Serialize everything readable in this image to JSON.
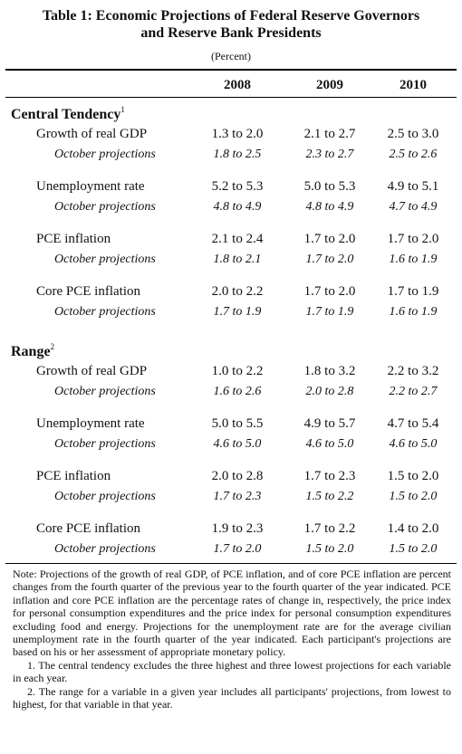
{
  "table": {
    "title_line1": "Table 1:  Economic Projections of Federal Reserve Governors",
    "title_line2": "and Reserve Bank Presidents",
    "unit": "(Percent)",
    "columns": [
      "2008",
      "2009",
      "2010"
    ],
    "sections": [
      {
        "label": "Central Tendency",
        "footnote": "1",
        "rows": [
          {
            "label": "Growth of real GDP",
            "values": [
              "1.3 to 2.0",
              "2.1 to 2.7",
              "2.5 to 3.0"
            ],
            "sub_label": "October projections",
            "sub_values": [
              "1.8 to 2.5",
              "2.3 to 2.7",
              "2.5 to 2.6"
            ]
          },
          {
            "label": "Unemployment rate",
            "values": [
              "5.2 to 5.3",
              "5.0 to 5.3",
              "4.9 to 5.1"
            ],
            "sub_label": "October projections",
            "sub_values": [
              "4.8 to 4.9",
              "4.8 to 4.9",
              "4.7 to 4.9"
            ]
          },
          {
            "label": "PCE inflation",
            "values": [
              "2.1 to 2.4",
              "1.7 to 2.0",
              "1.7 to 2.0"
            ],
            "sub_label": "October projections",
            "sub_values": [
              "1.8 to 2.1",
              "1.7 to 2.0",
              "1.6 to 1.9"
            ]
          },
          {
            "label": "Core PCE inflation",
            "values": [
              "2.0 to 2.2",
              "1.7 to 2.0",
              "1.7 to 1.9"
            ],
            "sub_label": "October projections",
            "sub_values": [
              "1.7 to 1.9",
              "1.7 to 1.9",
              "1.6 to 1.9"
            ]
          }
        ]
      },
      {
        "label": "Range",
        "footnote": "2",
        "rows": [
          {
            "label": "Growth of real GDP",
            "values": [
              "1.0 to 2.2",
              "1.8 to 3.2",
              "2.2 to 3.2"
            ],
            "sub_label": "October projections",
            "sub_values": [
              "1.6 to 2.6",
              "2.0 to 2.8",
              "2.2 to 2.7"
            ]
          },
          {
            "label": "Unemployment rate",
            "values": [
              "5.0 to 5.5",
              "4.9 to 5.7",
              "4.7 to 5.4"
            ],
            "sub_label": "October projections",
            "sub_values": [
              "4.6 to 5.0",
              "4.6 to 5.0",
              "4.6 to 5.0"
            ]
          },
          {
            "label": "PCE inflation",
            "values": [
              "2.0 to 2.8",
              "1.7 to 2.3",
              "1.5 to 2.0"
            ],
            "sub_label": "October projections",
            "sub_values": [
              "1.7 to 2.3",
              "1.5 to 2.2",
              "1.5 to 2.0"
            ]
          },
          {
            "label": "Core PCE inflation",
            "values": [
              "1.9 to 2.3",
              "1.7 to 2.2",
              "1.4 to 2.0"
            ],
            "sub_label": "October projections",
            "sub_values": [
              "1.7 to 2.0",
              "1.5 to 2.0",
              "1.5 to 2.0"
            ]
          }
        ]
      }
    ]
  },
  "notes": {
    "main": "Note:  Projections of the growth of real GDP, of PCE inflation, and of core PCE inflation are percent changes from the fourth quarter of the previous year to the fourth quarter of the year indicated. PCE inflation and core PCE inflation are the percentage rates of change in, respectively, the price index for personal consumption expenditures and the price index for personal consumption expenditures excluding food and energy. Projections for the unemployment rate are for the average civilian unemployment rate in the fourth quarter of the year indicated. Each participant's projections are based on his or her assessment of appropriate monetary policy.",
    "footnote1": "1.  The central tendency excludes the three highest and three lowest projections for each variable in each year.",
    "footnote2": "2.  The range for a variable in a given year includes all participants' projections, from lowest to highest, for that variable in that year."
  }
}
